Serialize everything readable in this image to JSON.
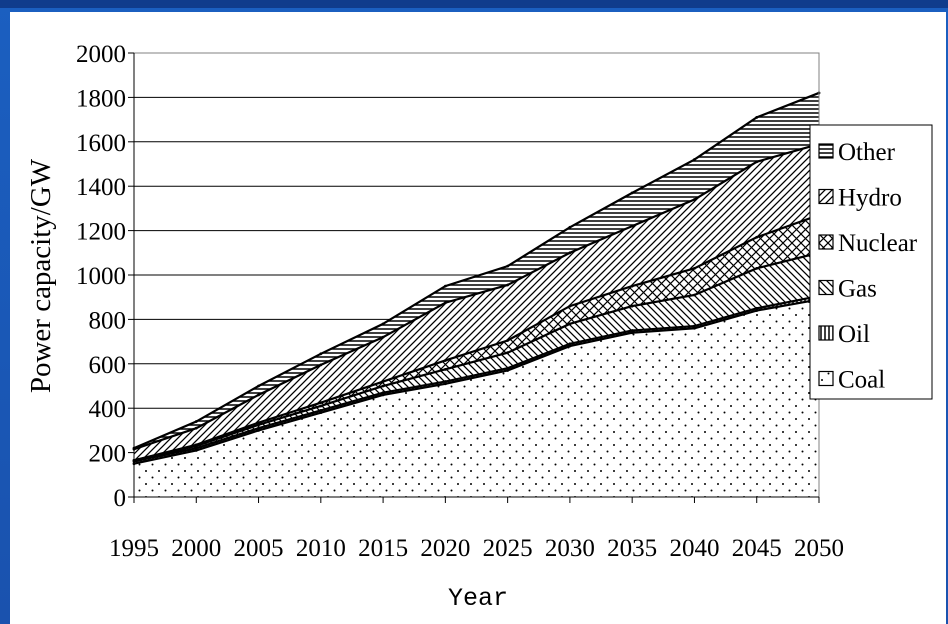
{
  "colors": {
    "slide_background": "#1a52ae",
    "panel": "#ffffff",
    "ink": "#000000"
  },
  "chart_data": {
    "type": "area",
    "stacked": true,
    "title": "",
    "xlabel": "Year",
    "ylabel": "Power capacity/GW",
    "x": [
      1995,
      2000,
      2005,
      2010,
      2015,
      2020,
      2025,
      2030,
      2035,
      2040,
      2045,
      2050
    ],
    "x_tick_labels": [
      "1995",
      "2000",
      "2005",
      "2010",
      "2015",
      "2020",
      "2025",
      "2030",
      "2035",
      "2040",
      "2045",
      "2050"
    ],
    "ylim": [
      0,
      2000
    ],
    "y_ticks": [
      0,
      200,
      400,
      600,
      800,
      1000,
      1200,
      1400,
      1600,
      1800,
      2000
    ],
    "y_tick_labels": [
      "0",
      "200",
      "400",
      "600",
      "800",
      "1000",
      "1200",
      "1400",
      "1600",
      "1800",
      "2000"
    ],
    "grid": "horizontal",
    "legend_position": "right",
    "series": [
      {
        "name": "Coal",
        "pattern": "dots",
        "values": [
          150,
          210,
          300,
          380,
          460,
          510,
          570,
          680,
          740,
          760,
          840,
          890
        ]
      },
      {
        "name": "Oil",
        "pattern": "vertical-lines",
        "values": [
          10,
          10,
          10,
          10,
          10,
          10,
          10,
          10,
          10,
          10,
          10,
          15
        ]
      },
      {
        "name": "Gas",
        "pattern": "diagonal-down",
        "values": [
          5,
          10,
          15,
          20,
          30,
          55,
          70,
          90,
          110,
          140,
          180,
          195
        ]
      },
      {
        "name": "Nuclear",
        "pattern": "crosshatch",
        "values": [
          0,
          5,
          10,
          15,
          20,
          40,
          55,
          80,
          90,
          120,
          140,
          170
        ]
      },
      {
        "name": "Hydro",
        "pattern": "diagonal-up",
        "values": [
          50,
          75,
          125,
          170,
          200,
          260,
          250,
          240,
          270,
          310,
          340,
          320
        ]
      },
      {
        "name": "Other",
        "pattern": "horizontal-lines",
        "values": [
          5,
          30,
          40,
          50,
          60,
          75,
          85,
          115,
          150,
          180,
          200,
          230
        ]
      }
    ],
    "legend_order": [
      "Other",
      "Hydro",
      "Nuclear",
      "Gas",
      "Oil",
      "Coal"
    ]
  }
}
